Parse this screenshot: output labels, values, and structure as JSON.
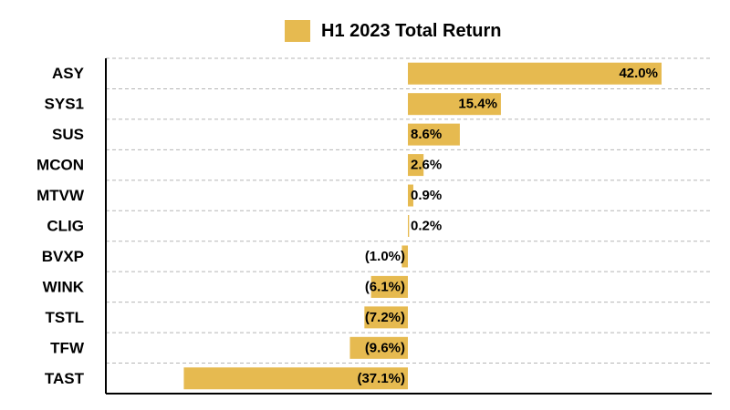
{
  "chart_data": {
    "type": "bar",
    "orientation": "horizontal",
    "title": "",
    "categories": [
      "ASY",
      "SYS1",
      "SUS",
      "MCON",
      "MTVW",
      "CLIG",
      "BVXP",
      "WINK",
      "TSTL",
      "TFW",
      "TAST"
    ],
    "series": [
      {
        "name": "H1 2023 Total Return",
        "values": [
          42.0,
          15.4,
          8.6,
          2.6,
          0.9,
          0.2,
          -1.0,
          -6.1,
          -7.2,
          -9.6,
          -37.1
        ],
        "labels": [
          "42.0%",
          "15.4%",
          "8.6%",
          "2.6%",
          "0.9%",
          "0.2%",
          "(1.0%)",
          "(6.1%)",
          "(7.2%)",
          "(9.6%)",
          "(37.1%)"
        ]
      }
    ],
    "xlim": [
      -42,
      42
    ],
    "unit": "%",
    "bar_color": "#E6BA50",
    "gridlines": "horizontal-dashed",
    "legend_position": "top"
  }
}
